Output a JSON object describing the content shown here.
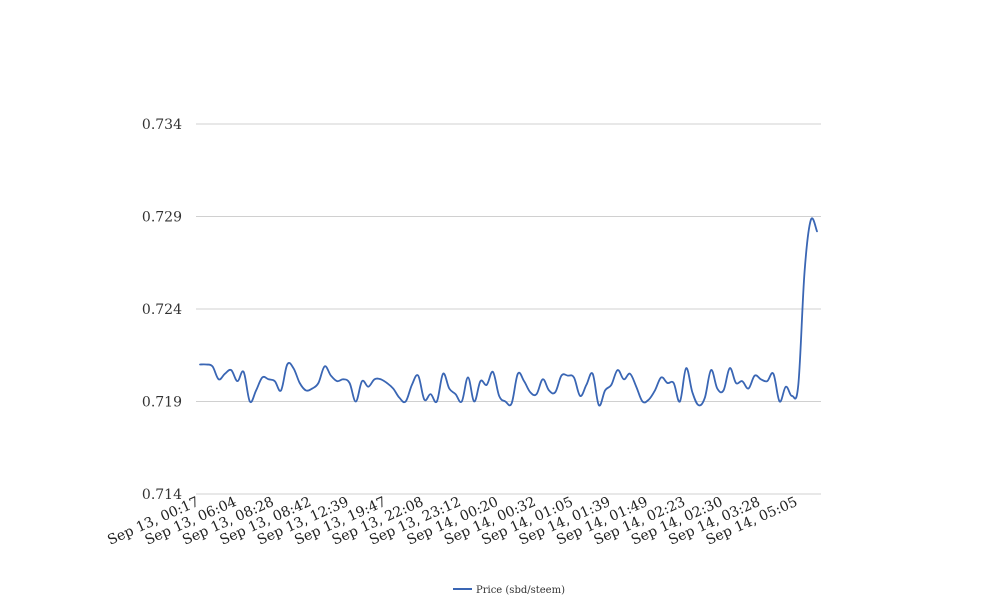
{
  "chart_data": {
    "type": "line",
    "title": "",
    "xlabel": "",
    "ylabel": "",
    "ylim": [
      0.714,
      0.734
    ],
    "yticks": [
      "0.714",
      "0.719",
      "0.724",
      "0.729",
      "0.734"
    ],
    "grid": true,
    "legend_position": "bottom",
    "x_tick_labels": [
      "Sep 13, 00:17",
      "Sep 13, 06:04",
      "Sep 13, 08:28",
      "Sep 13, 08:42",
      "Sep 13, 12:39",
      "Sep 13, 19:47",
      "Sep 13, 22:08",
      "Sep 13, 23:12",
      "Sep 14, 00:20",
      "Sep 14, 00:32",
      "Sep 14, 01:05",
      "Sep 14, 01:39",
      "Sep 14, 01:49",
      "Sep 14, 02:23",
      "Sep 14, 02:30",
      "Sep 14, 03:28",
      "Sep 14, 05:05"
    ],
    "series": [
      {
        "name": "Price (sbd/steem)",
        "color": "#3a66b4",
        "values": [
          0.721,
          0.721,
          0.7209,
          0.7202,
          0.7205,
          0.7207,
          0.7201,
          0.7206,
          0.719,
          0.7196,
          0.7203,
          0.7202,
          0.7201,
          0.7196,
          0.721,
          0.7208,
          0.72,
          0.7196,
          0.7197,
          0.72,
          0.7209,
          0.7204,
          0.7201,
          0.7202,
          0.72,
          0.719,
          0.7201,
          0.7198,
          0.7202,
          0.7202,
          0.72,
          0.7197,
          0.7192,
          0.719,
          0.7199,
          0.7204,
          0.7191,
          0.7194,
          0.719,
          0.7205,
          0.7197,
          0.7194,
          0.719,
          0.7203,
          0.719,
          0.7201,
          0.7199,
          0.7206,
          0.7193,
          0.719,
          0.7189,
          0.7205,
          0.7201,
          0.7195,
          0.7194,
          0.7202,
          0.7196,
          0.7195,
          0.7204,
          0.7204,
          0.7203,
          0.7193,
          0.7199,
          0.7205,
          0.7188,
          0.7196,
          0.7199,
          0.7207,
          0.7202,
          0.7205,
          0.7198,
          0.719,
          0.7191,
          0.7196,
          0.7203,
          0.72,
          0.72,
          0.719,
          0.7208,
          0.7195,
          0.7188,
          0.7192,
          0.7207,
          0.7197,
          0.7196,
          0.7208,
          0.72,
          0.7201,
          0.7197,
          0.7204,
          0.7202,
          0.7201,
          0.7205,
          0.719,
          0.7198,
          0.7193,
          0.7199,
          0.726,
          0.7288,
          0.7282
        ]
      }
    ]
  }
}
